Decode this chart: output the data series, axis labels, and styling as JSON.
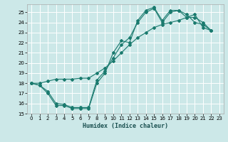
{
  "xlabel": "Humidex (Indice chaleur)",
  "bg_color": "#cce8e8",
  "grid_color": "#ffffff",
  "line_color": "#1a7a6e",
  "xlim": [
    -0.5,
    23.5
  ],
  "ylim": [
    15,
    25.8
  ],
  "xticks": [
    0,
    1,
    2,
    3,
    4,
    5,
    6,
    7,
    8,
    9,
    10,
    11,
    12,
    13,
    14,
    15,
    16,
    17,
    18,
    19,
    20,
    21,
    22,
    23
  ],
  "yticks": [
    15,
    16,
    17,
    18,
    19,
    20,
    21,
    22,
    23,
    24,
    25
  ],
  "s1_x": [
    0,
    1,
    2,
    3,
    4,
    5,
    6,
    7,
    8,
    9,
    10,
    11,
    12,
    13,
    14,
    15,
    16,
    17,
    18,
    19,
    20,
    21,
    22
  ],
  "s1_y": [
    18.0,
    17.8,
    17.0,
    15.8,
    15.8,
    15.5,
    15.5,
    15.5,
    18.0,
    19.0,
    21.0,
    22.2,
    22.0,
    24.2,
    25.2,
    25.5,
    24.2,
    25.2,
    25.2,
    24.8,
    24.0,
    23.8,
    23.2
  ],
  "s2_x": [
    0,
    1,
    2,
    3,
    4,
    5,
    6,
    7,
    8,
    9,
    10,
    11,
    12,
    13,
    14,
    15,
    16,
    17,
    18,
    19,
    20,
    21,
    22
  ],
  "s2_y": [
    18.0,
    17.8,
    17.2,
    16.0,
    15.9,
    15.6,
    15.6,
    15.6,
    18.3,
    19.2,
    20.5,
    21.8,
    22.5,
    24.0,
    25.0,
    25.4,
    24.0,
    25.0,
    25.2,
    24.5,
    24.5,
    24.0,
    23.2
  ],
  "s3_x": [
    0,
    1,
    2,
    3,
    4,
    5,
    6,
    7,
    8,
    9,
    10,
    11,
    12,
    13,
    14,
    15,
    16,
    17,
    18,
    19,
    20,
    21,
    22
  ],
  "s3_y": [
    18.0,
    18.0,
    18.2,
    18.4,
    18.4,
    18.4,
    18.5,
    18.5,
    19.0,
    19.5,
    20.2,
    21.0,
    21.8,
    22.5,
    23.0,
    23.5,
    23.8,
    24.0,
    24.2,
    24.5,
    24.8,
    23.5,
    23.2
  ]
}
